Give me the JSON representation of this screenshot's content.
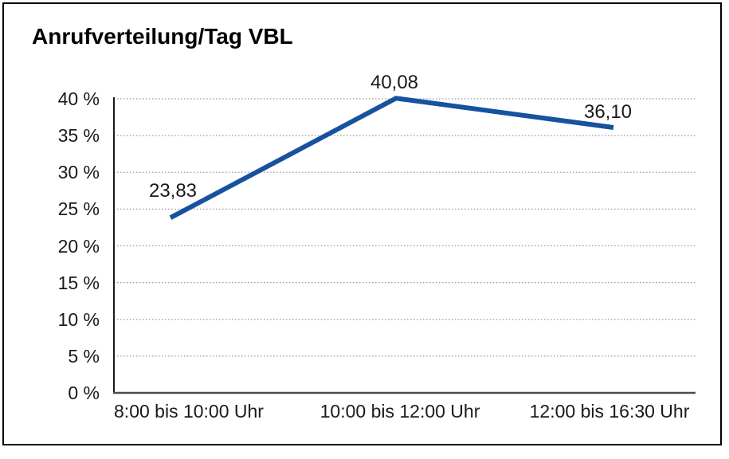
{
  "window": {
    "background": "#ffffff",
    "frame_border_color": "#000000"
  },
  "chart_data": {
    "type": "line",
    "title": "Anrufverteilung/Tag VBL",
    "categories": [
      "8:00 bis 10:00 Uhr",
      "10:00 bis 12:00 Uhr",
      "12:00 bis 16:30 Uhr"
    ],
    "series": [
      {
        "name": "Anrufverteilung/Tag VBL",
        "values": [
          23.83,
          40.08,
          36.1
        ]
      }
    ],
    "point_labels": [
      "23,83",
      "40,08",
      "36,10"
    ],
    "xlabel": "",
    "ylabel": "",
    "ylim": [
      0,
      40
    ],
    "ytick_step": 5,
    "ytick_labels": [
      "0 %",
      "5 %",
      "10 %",
      "15 %",
      "20 %",
      "25 %",
      "30 %",
      "35 %",
      "40 %"
    ],
    "grid": "horizontal-dotted",
    "legend": "none",
    "colors": {
      "line": "#17529E",
      "gridline": "#999999",
      "y_axis": "#1a1a1a",
      "x_axis": "#4c4c4c",
      "text": "#1a1a1a"
    }
  }
}
